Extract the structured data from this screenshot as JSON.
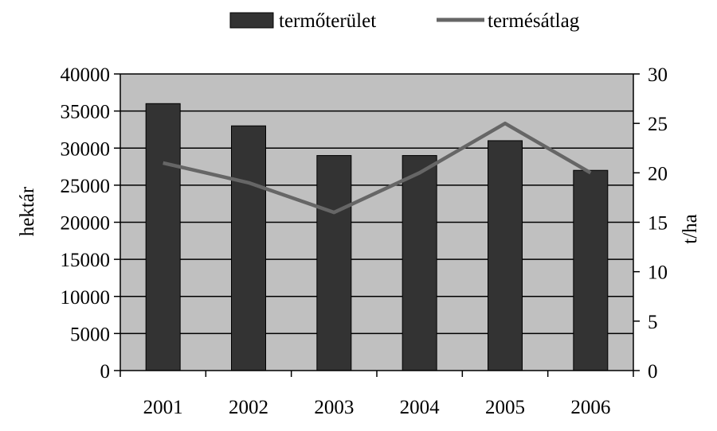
{
  "colors": {
    "plot_background": "#c0c0c0",
    "bar_fill": "#333333",
    "line_color": "#666666",
    "gridline": "#000000"
  },
  "chart_data": {
    "type": "bar",
    "categories": [
      "2001",
      "2002",
      "2003",
      "2004",
      "2005",
      "2006"
    ],
    "series": [
      {
        "name": "termőterület",
        "type": "bar",
        "axis": "left",
        "values": [
          36000,
          33000,
          29000,
          29000,
          31000,
          27000
        ]
      },
      {
        "name": "termésátlag",
        "type": "line",
        "axis": "right",
        "values": [
          21,
          19,
          16,
          20,
          25,
          20
        ]
      }
    ],
    "ylabel": "hektár",
    "ylabel_right": "t/ha",
    "ylim": [
      0,
      40000
    ],
    "ylim_right": [
      0,
      30
    ],
    "y_ticks": [
      "0",
      "5000",
      "10000",
      "15000",
      "20000",
      "25000",
      "30000",
      "35000",
      "40000"
    ],
    "y_ticks_right": [
      "0",
      "5",
      "10",
      "15",
      "20",
      "25",
      "30"
    ],
    "grid": true,
    "legend_position": "top"
  }
}
